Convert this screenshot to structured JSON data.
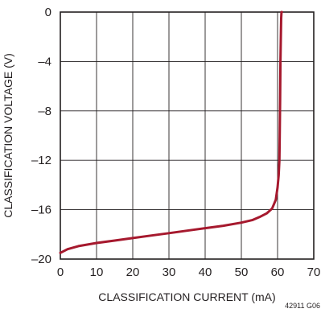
{
  "chart_data": {
    "type": "line",
    "xlabel": "CLASSIFICATION CURRENT (mA)",
    "ylabel": "CLASSIFICATION VOLTAGE (V)",
    "xlim": [
      0,
      70
    ],
    "ylim": [
      -20,
      0
    ],
    "xticks": [
      "0",
      "10",
      "20",
      "30",
      "40",
      "50",
      "60",
      "70"
    ],
    "yticks": [
      "0",
      "–4",
      "–8",
      "–12",
      "–16",
      "–20"
    ],
    "grid": true,
    "figure_code": "42911 G06",
    "line_color": "#a6192e",
    "series": [
      {
        "x": [
          0,
          2,
          5,
          10,
          15,
          20,
          25,
          30,
          35,
          40,
          45,
          50,
          53,
          55,
          57,
          58.5,
          59.5,
          60,
          60.3,
          60.5,
          60.6,
          60.7,
          60.8,
          60.9,
          61.0,
          61.1,
          61.2
        ],
        "y": [
          -19.5,
          -19.2,
          -18.95,
          -18.7,
          -18.5,
          -18.3,
          -18.1,
          -17.9,
          -17.7,
          -17.5,
          -17.3,
          -17.05,
          -16.85,
          -16.6,
          -16.3,
          -15.9,
          -15.2,
          -14.2,
          -13.2,
          -12.0,
          -10.0,
          -7.0,
          -4.0,
          -2.0,
          -0.5,
          0,
          0
        ]
      }
    ]
  }
}
